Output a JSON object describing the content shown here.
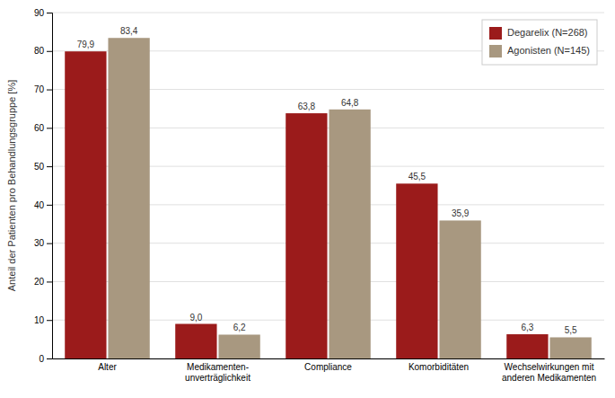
{
  "chart_data": {
    "type": "bar",
    "categories": [
      "Alter",
      "Medikamenten-\nunverträglichkeit",
      "Compliance",
      "Komorbiditäten",
      "Wechselwirkungen mit\nanderen Medikamenten"
    ],
    "series": [
      {
        "name": "Degarelix (N=268)",
        "color": "#9B1B1B",
        "values": [
          79.9,
          9.0,
          63.8,
          45.5,
          6.3
        ],
        "value_labels": [
          "79,9",
          "9,0",
          "63,8",
          "45,5",
          "6,3"
        ]
      },
      {
        "name": "Agonisten (N=145)",
        "color": "#A89880",
        "values": [
          83.4,
          6.2,
          64.8,
          35.9,
          5.5
        ],
        "value_labels": [
          "83,4",
          "6,2",
          "64,8",
          "35,9",
          "5,5"
        ]
      }
    ],
    "y_label": "Anteil der Patienten pro Behandlungsgruppe [%]",
    "ylim": [
      0,
      90
    ],
    "yticks": [
      0,
      10,
      20,
      30,
      40,
      50,
      60,
      70,
      80,
      90
    ],
    "grid": true,
    "legend": "top-right",
    "data_labels": true
  }
}
